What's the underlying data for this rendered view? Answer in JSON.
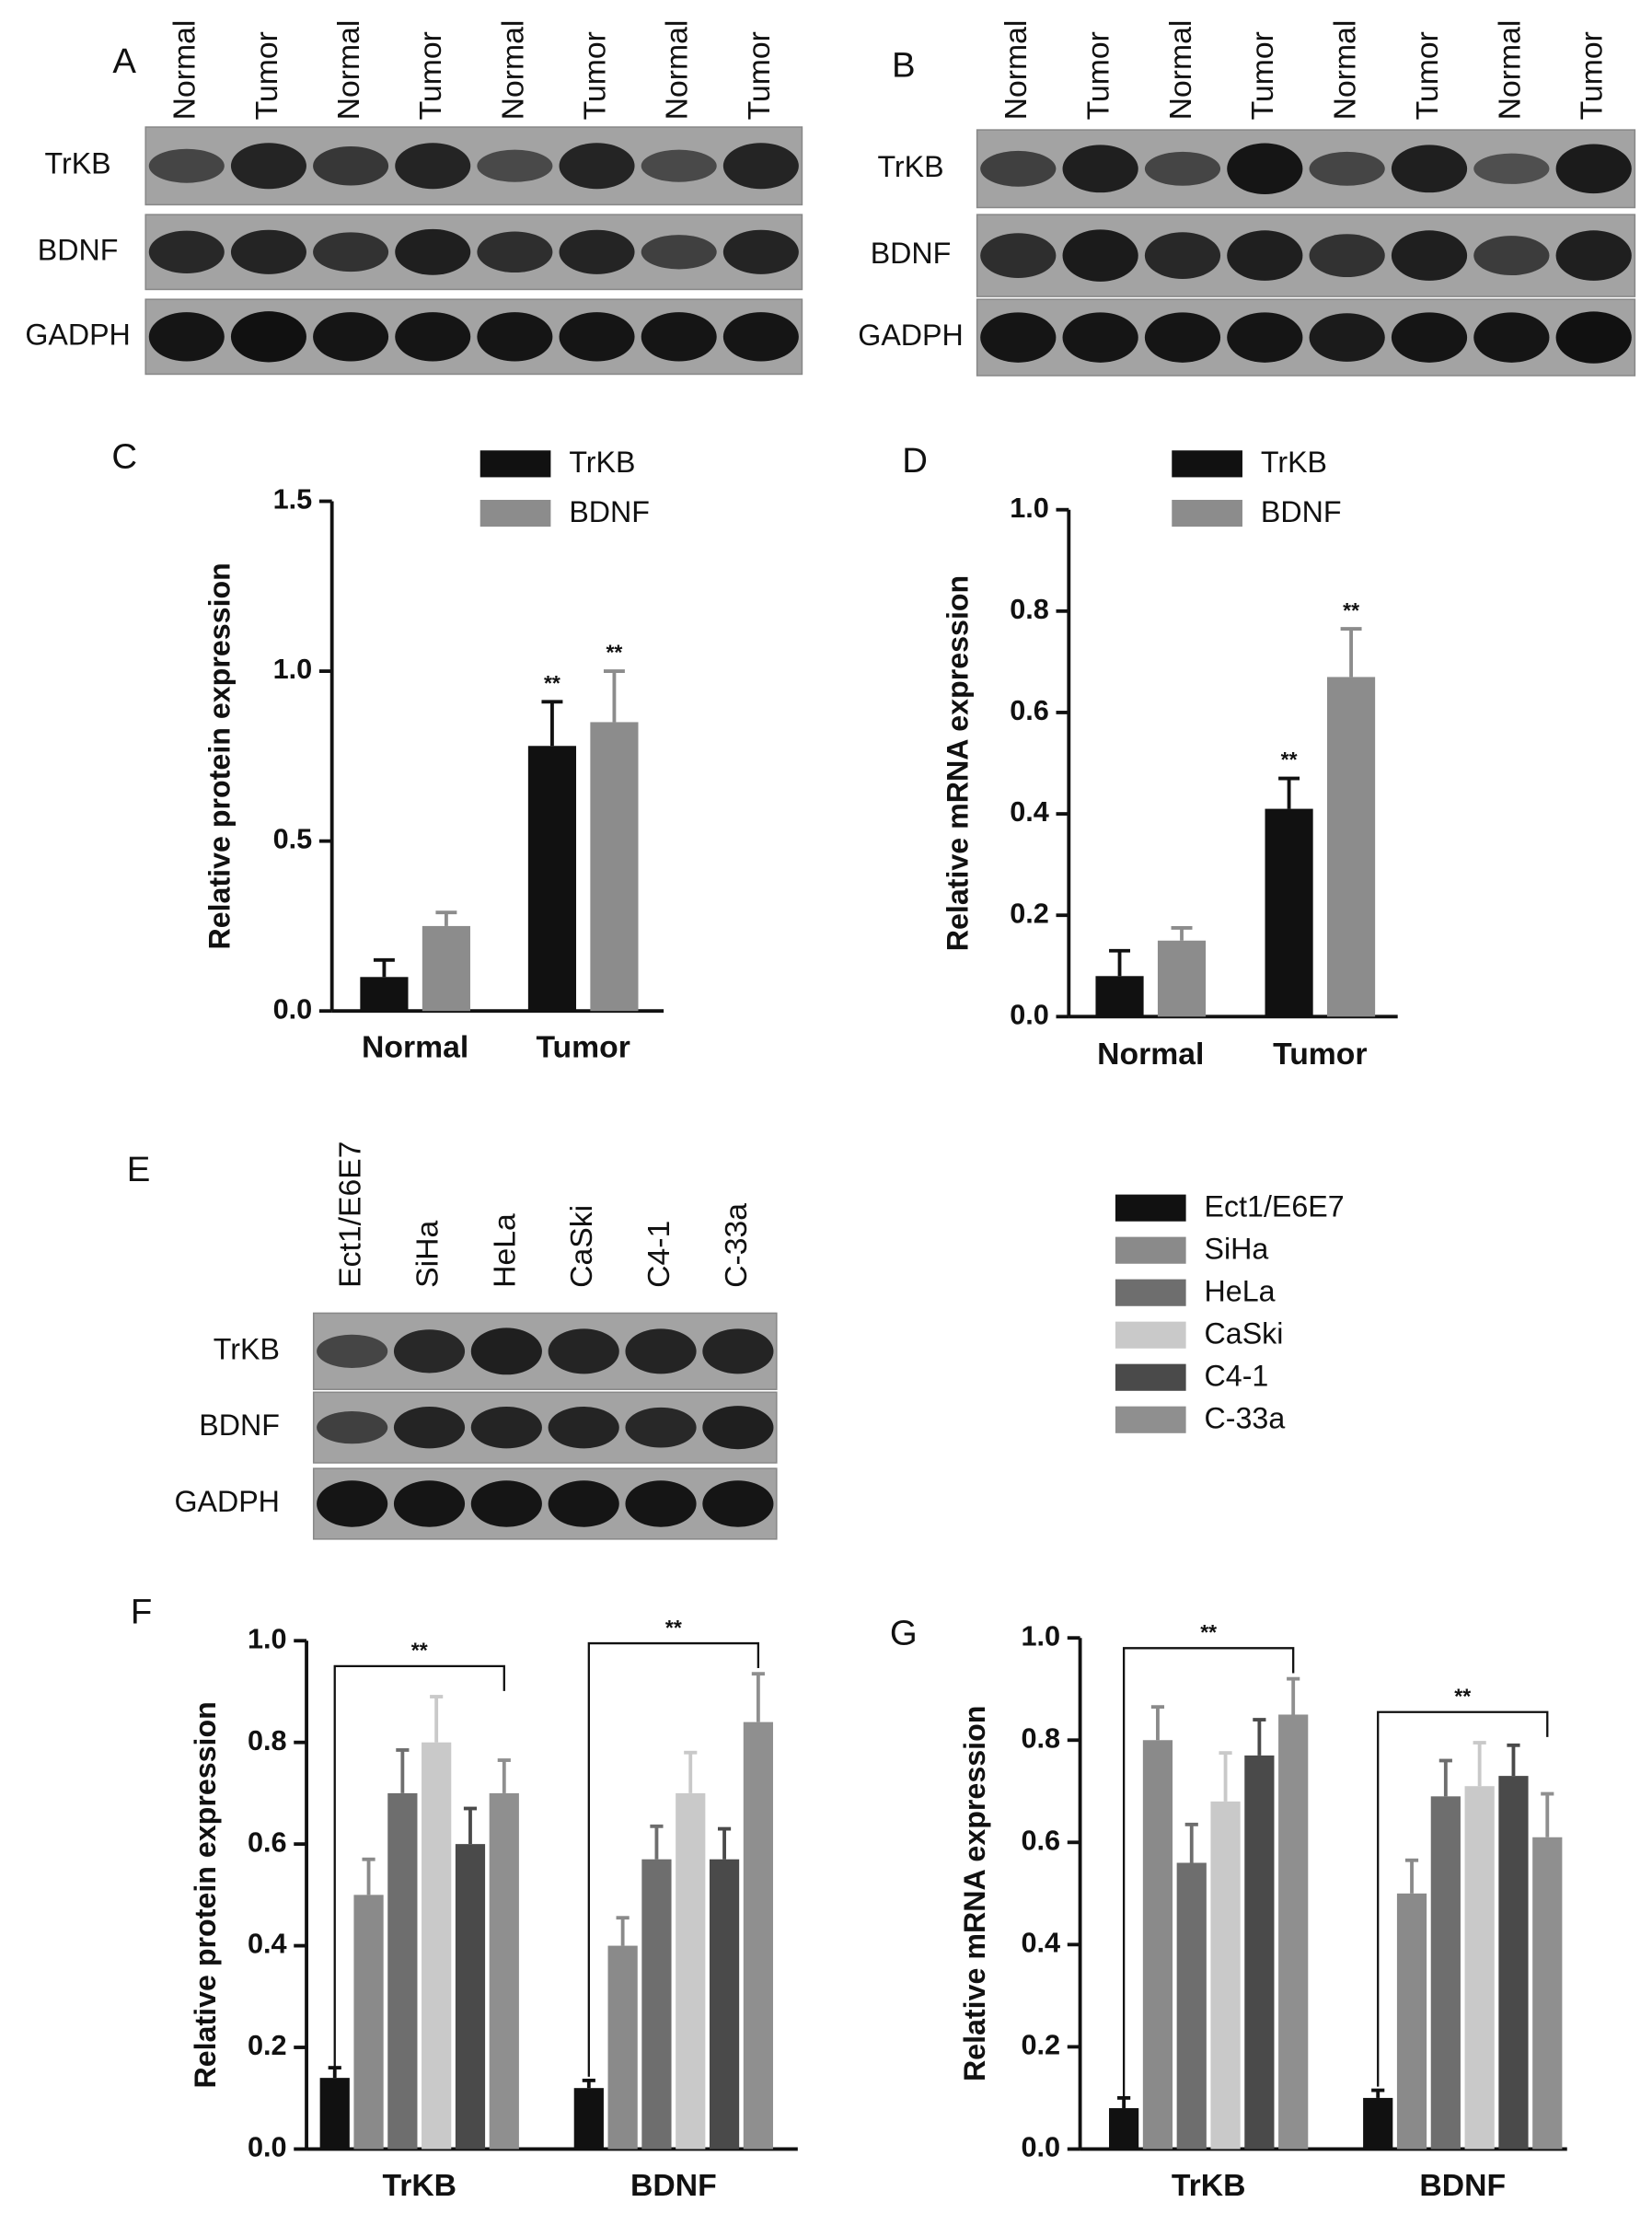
{
  "blots": [
    {
      "label": "A",
      "lanes": [
        "Normal",
        "Tumor",
        "Normal",
        "Tumor",
        "Normal",
        "Tumor",
        "Normal",
        "Tumor"
      ],
      "rows": [
        "TrKB",
        "BDNF",
        "GADPH"
      ]
    },
    {
      "label": "B",
      "lanes": [
        "Normal",
        "Tumor",
        "Normal",
        "Tumor",
        "Normal",
        "Tumor",
        "Normal",
        "Tumor"
      ],
      "rows": [
        "TrKB",
        "BDNF",
        "GADPH"
      ]
    },
    {
      "label": "E",
      "lanes": [
        "Ect1/E6E7",
        "SiHa",
        "HeLa",
        "CaSki",
        "C4-1",
        "C-33a"
      ],
      "rows": [
        "TrKB",
        "BDNF",
        "GADPH"
      ]
    }
  ],
  "chart_data": [
    {
      "type": "bar",
      "label": "C",
      "y_label": "Relative protein expression",
      "categories": [
        "Normal",
        "Tumor"
      ],
      "series": [
        {
          "name": "TrKB",
          "color": "#111111",
          "values": [
            0.1,
            0.78
          ],
          "errors": [
            0.05,
            0.13
          ],
          "significance": [
            null,
            "**"
          ]
        },
        {
          "name": "BDNF",
          "color": "#8c8c8c",
          "values": [
            0.25,
            0.85
          ],
          "errors": [
            0.04,
            0.15
          ],
          "significance": [
            null,
            "**"
          ]
        }
      ],
      "ylim": [
        0,
        1.5
      ],
      "yticks": [
        {
          "value": 0,
          "label": "0.0"
        },
        0.5,
        {
          "value": 1,
          "label": "1.0"
        },
        1.5
      ]
    },
    {
      "type": "bar",
      "label": "D",
      "y_label": "Relative mRNA expression",
      "categories": [
        "Normal",
        "Tumor"
      ],
      "series": [
        {
          "name": "TrKB",
          "color": "#111111",
          "values": [
            0.08,
            0.41
          ],
          "errors": [
            0.05,
            0.06
          ],
          "significance": [
            null,
            "**"
          ]
        },
        {
          "name": "BDNF",
          "color": "#8c8c8c",
          "values": [
            0.15,
            0.67
          ],
          "errors": [
            0.025,
            0.095
          ],
          "significance": [
            null,
            "**"
          ]
        }
      ],
      "ylim": [
        0,
        1
      ],
      "yticks": [
        {
          "value": 0,
          "label": "0.0"
        },
        0.2,
        0.4,
        0.6,
        0.8,
        {
          "value": 1,
          "label": "1.0"
        }
      ]
    },
    {
      "type": "bar",
      "label": "F",
      "y_label": "Relative protein expression",
      "categories": [
        "TrKB",
        "BDNF"
      ],
      "series": [
        {
          "name": "Ect1/E6E7",
          "color": "#111111",
          "values": [
            0.14,
            0.12
          ],
          "errors": [
            0.02,
            0.015
          ]
        },
        {
          "name": "SiHa",
          "color": "#8a8a8a",
          "values": [
            0.5,
            0.4
          ],
          "errors": [
            0.07,
            0.055
          ]
        },
        {
          "name": "HeLa",
          "color": "#6e6e6e",
          "values": [
            0.7,
            0.57
          ],
          "errors": [
            0.085,
            0.065
          ]
        },
        {
          "name": "CaSki",
          "color": "#c9c9c9",
          "values": [
            0.8,
            0.7
          ],
          "errors": [
            0.09,
            0.08
          ]
        },
        {
          "name": "C4-1",
          "color": "#4a4a4a",
          "values": [
            0.6,
            0.57
          ],
          "errors": [
            0.07,
            0.06
          ]
        },
        {
          "name": "C-33a",
          "color": "#8f8f8f",
          "values": [
            0.7,
            0.84
          ],
          "errors": [
            0.065,
            0.095
          ]
        }
      ],
      "group_significance": [
        "**",
        "**"
      ],
      "ylim": [
        0,
        1
      ],
      "yticks": [
        {
          "value": 0,
          "label": "0.0"
        },
        0.2,
        0.4,
        0.6,
        0.8,
        {
          "value": 1,
          "label": "1.0"
        }
      ]
    },
    {
      "type": "bar",
      "label": "G",
      "y_label": "Relative mRNA expression",
      "categories": [
        "TrKB",
        "BDNF"
      ],
      "series": [
        {
          "color": "#111111",
          "values": [
            0.08,
            0.1
          ],
          "errors": [
            0.02,
            0.015
          ]
        },
        {
          "color": "#8a8a8a",
          "values": [
            0.8,
            0.5
          ],
          "errors": [
            0.065,
            0.065
          ]
        },
        {
          "color": "#6e6e6e",
          "values": [
            0.56,
            0.69
          ],
          "errors": [
            0.075,
            0.07
          ]
        },
        {
          "color": "#c9c9c9",
          "values": [
            0.68,
            0.71
          ],
          "errors": [
            0.095,
            0.085
          ]
        },
        {
          "color": "#4a4a4a",
          "values": [
            0.77,
            0.73
          ],
          "errors": [
            0.07,
            0.06
          ]
        },
        {
          "color": "#8f8f8f",
          "values": [
            0.85,
            0.61
          ],
          "errors": [
            0.07,
            0.085
          ]
        }
      ],
      "group_significance": [
        "**",
        "**"
      ],
      "ylim": [
        0,
        1
      ],
      "yticks": [
        {
          "value": 0,
          "label": "0.0"
        },
        0.2,
        0.4,
        0.6,
        0.8,
        {
          "value": 1,
          "label": "1.0"
        }
      ]
    }
  ]
}
